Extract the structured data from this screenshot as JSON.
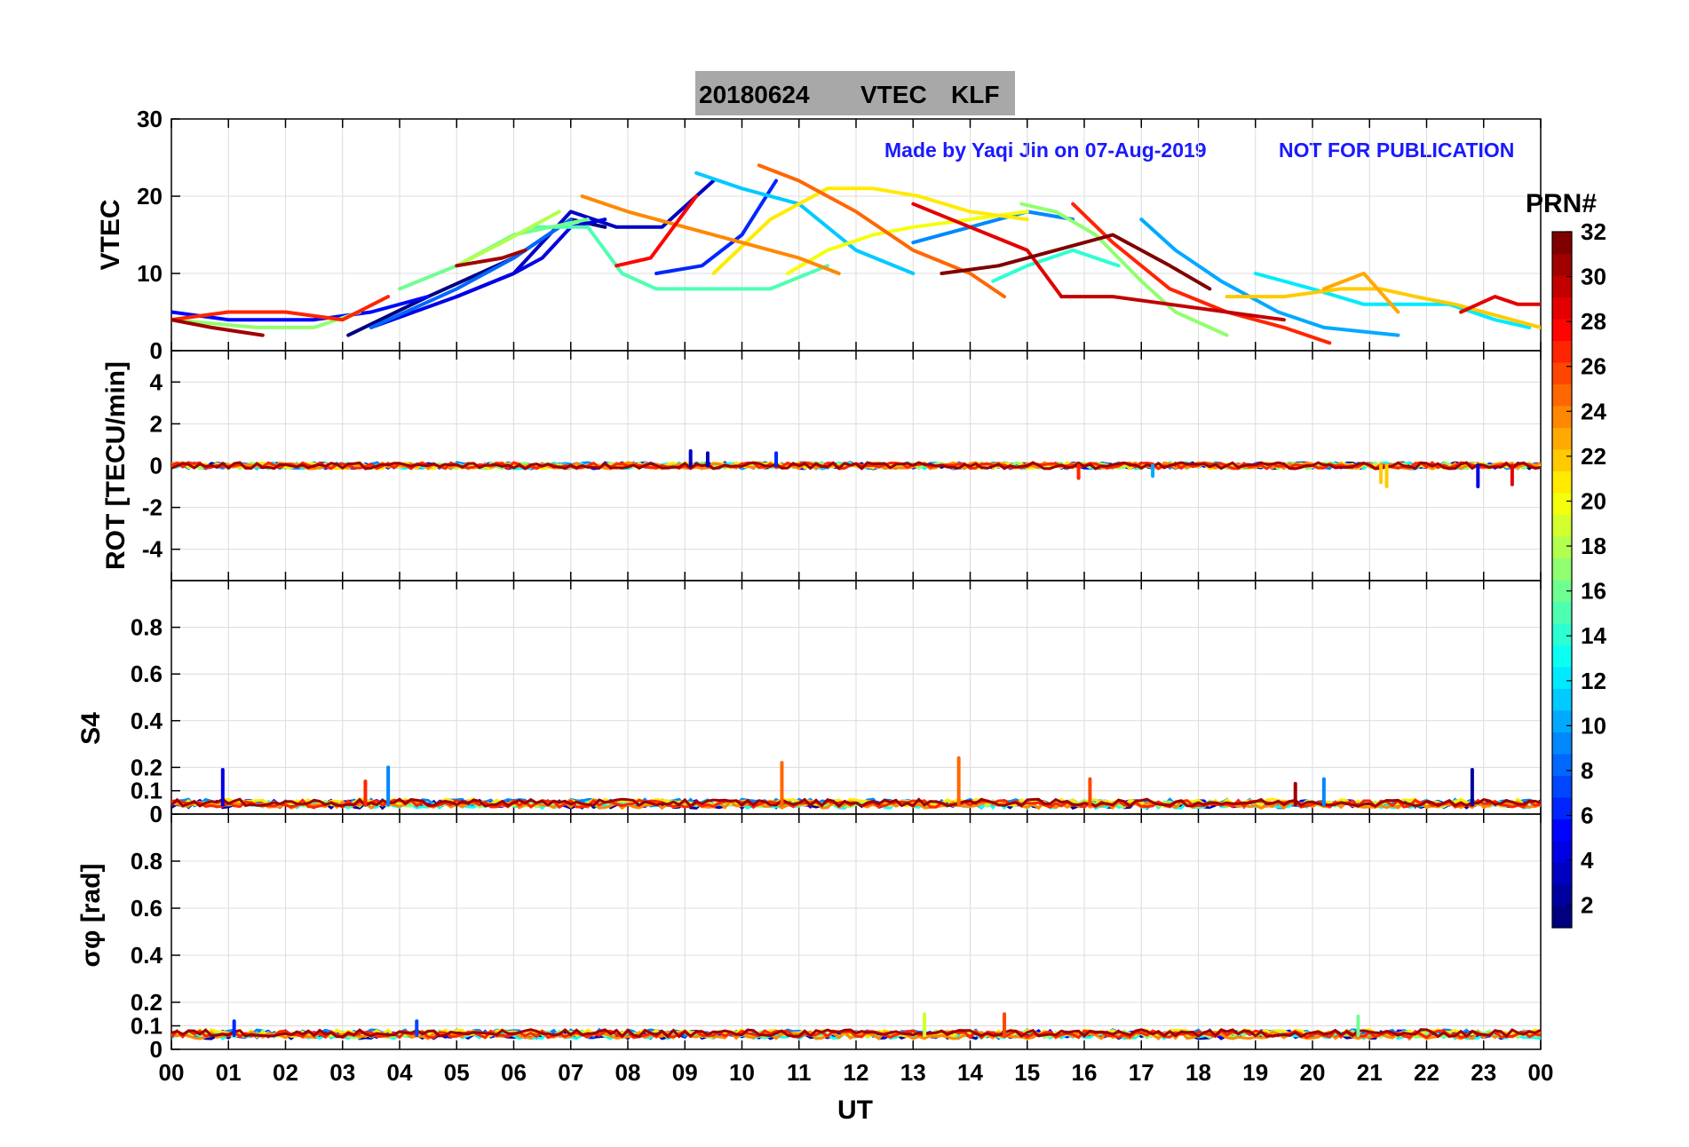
{
  "title": {
    "date": "20180624",
    "quantity": "VTEC",
    "station": "KLF"
  },
  "annotation": {
    "credit": "Made by Yaqi Jin on 07-Aug-2019",
    "notice": "NOT FOR PUBLICATION"
  },
  "colorbar": {
    "label": "PRN#",
    "range": [
      1,
      32
    ],
    "tick_labels": [
      "2",
      "4",
      "6",
      "8",
      "10",
      "12",
      "14",
      "16",
      "18",
      "20",
      "22",
      "24",
      "26",
      "28",
      "30",
      "32"
    ],
    "colormap": "jet"
  },
  "xaxis": {
    "label": "UT",
    "range": [
      0,
      24
    ],
    "tick_labels": [
      "00",
      "01",
      "02",
      "03",
      "04",
      "05",
      "06",
      "07",
      "08",
      "09",
      "10",
      "11",
      "12",
      "13",
      "14",
      "15",
      "16",
      "17",
      "18",
      "19",
      "20",
      "21",
      "22",
      "23",
      "00"
    ]
  },
  "chart_data": [
    {
      "type": "line",
      "panel": "vtec",
      "ylabel": "VTEC",
      "ylim": [
        0,
        30
      ],
      "ytick_labels": [
        "0",
        "10",
        "20",
        "30"
      ],
      "series": [
        {
          "prn": 1,
          "x": [
            3.1,
            4.5,
            6.0,
            7.0,
            7.6
          ],
          "y": [
            2,
            7,
            12,
            17,
            16
          ]
        },
        {
          "prn": 3,
          "x": [
            5.0,
            6.0,
            7.0,
            7.8,
            8.6,
            9.5
          ],
          "y": [
            7,
            10,
            18,
            16,
            16,
            22
          ]
        },
        {
          "prn": 4,
          "x": [
            3.5,
            5.0,
            6.0,
            6.5,
            7.0,
            7.6
          ],
          "y": [
            3,
            7,
            10,
            12,
            16,
            17
          ]
        },
        {
          "prn": 5,
          "x": [
            0,
            1.0,
            2.5,
            3.5,
            4.5
          ],
          "y": [
            5,
            4,
            4,
            5,
            7
          ]
        },
        {
          "prn": 6,
          "x": [
            8.5,
            9.3,
            10.0,
            10.6
          ],
          "y": [
            10,
            11,
            15,
            22
          ]
        },
        {
          "prn": 8,
          "x": [
            3.5,
            5.0,
            6.0,
            7.0
          ],
          "y": [
            3,
            8,
            12,
            17
          ]
        },
        {
          "prn": 9,
          "x": [
            13.0,
            14.0,
            15.0,
            15.8
          ],
          "y": [
            14,
            16,
            18,
            17
          ]
        },
        {
          "prn": 10,
          "x": [
            17.0,
            17.6,
            18.4,
            19.4,
            20.2,
            21.5
          ],
          "y": [
            17,
            13,
            9,
            5,
            3,
            2
          ]
        },
        {
          "prn": 11,
          "x": [
            9.2,
            10.0,
            11.0,
            12.0,
            13.0
          ],
          "y": [
            23,
            21,
            19,
            13,
            10
          ]
        },
        {
          "prn": 12,
          "x": [
            19.0,
            20.0,
            20.9,
            21.5,
            22.4,
            23.2,
            23.8
          ],
          "y": [
            10,
            8,
            6,
            6,
            6,
            4,
            3
          ]
        },
        {
          "prn": 14,
          "x": [
            14.4,
            15.0,
            15.8,
            16.6
          ],
          "y": [
            9,
            11,
            13,
            11
          ]
        },
        {
          "prn": 15,
          "x": [
            6.3,
            7.3,
            7.9,
            8.5,
            9.5,
            10.5,
            11.5
          ],
          "y": [
            16,
            16,
            10,
            8,
            8,
            8,
            11
          ]
        },
        {
          "prn": 16,
          "x": [
            4.0,
            5.0,
            6.0,
            7.3
          ],
          "y": [
            8,
            11,
            15,
            17
          ]
        },
        {
          "prn": 17,
          "x": [
            0,
            1.5,
            2.5,
            3.3
          ],
          "y": [
            4,
            3,
            3,
            5
          ]
        },
        {
          "prn": 17,
          "x": [
            14.9,
            15.5,
            16.2,
            17.0,
            17.6,
            18.5
          ],
          "y": [
            19,
            18,
            15,
            9,
            5,
            2
          ]
        },
        {
          "prn": 18,
          "x": [
            5.0,
            5.8,
            6.8
          ],
          "y": [
            11,
            14,
            18
          ]
        },
        {
          "prn": 20,
          "x": [
            10.8,
            11.5,
            12.3,
            13.0,
            14.0,
            15.0
          ],
          "y": [
            10,
            13,
            15,
            16,
            17,
            18
          ]
        },
        {
          "prn": 21,
          "x": [
            9.5,
            10.5,
            11.5,
            12.3,
            13.1,
            14.0,
            15.0
          ],
          "y": [
            10,
            17,
            21,
            21,
            20,
            18,
            17
          ]
        },
        {
          "prn": 22,
          "x": [
            18.5,
            19.5,
            20.5,
            21.2,
            21.8,
            22.5,
            23.5,
            24.0
          ],
          "y": [
            7,
            7,
            8,
            8,
            7,
            6,
            4,
            3
          ]
        },
        {
          "prn": 23,
          "x": [
            20.2,
            20.9,
            21.5
          ],
          "y": [
            8,
            10,
            5
          ]
        },
        {
          "prn": 24,
          "x": [
            7.2,
            8.0,
            9.0,
            10.0,
            11.0,
            11.7
          ],
          "y": [
            20,
            18,
            16,
            14,
            12,
            10
          ]
        },
        {
          "prn": 25,
          "x": [
            10.3,
            11.0,
            12.0,
            13.0,
            14.0,
            14.6
          ],
          "y": [
            24,
            22,
            18,
            13,
            10,
            7
          ]
        },
        {
          "prn": 27,
          "x": [
            0,
            1.0,
            2.0,
            3.0,
            3.8
          ],
          "y": [
            4,
            5,
            5,
            4,
            7
          ]
        },
        {
          "prn": 27,
          "x": [
            15.8,
            16.5,
            17.5,
            18.5,
            19.5,
            20.3
          ],
          "y": [
            19,
            14,
            8,
            5,
            3,
            1
          ]
        },
        {
          "prn": 28,
          "x": [
            7.8,
            8.4,
            9.2
          ],
          "y": [
            11,
            12,
            20
          ]
        },
        {
          "prn": 29,
          "x": [
            13.0,
            14.0,
            15.0,
            15.6
          ],
          "y": [
            19,
            16,
            13,
            7
          ]
        },
        {
          "prn": 29,
          "x": [
            22.6,
            23.2,
            23.6,
            24.0
          ],
          "y": [
            5,
            7,
            6,
            6
          ]
        },
        {
          "prn": 30,
          "x": [
            15.6,
            16.5,
            17.5,
            18.5,
            19.5
          ],
          "y": [
            7,
            7,
            6,
            5,
            4
          ]
        },
        {
          "prn": 31,
          "x": [
            0,
            0.7,
            1.6
          ],
          "y": [
            4,
            3,
            2
          ]
        },
        {
          "prn": 31,
          "x": [
            5.0,
            5.8,
            6.2
          ],
          "y": [
            11,
            12,
            13
          ]
        },
        {
          "prn": 32,
          "x": [
            13.5,
            14.5,
            15.5,
            16.5,
            17.5,
            18.2
          ],
          "y": [
            10,
            11,
            13,
            15,
            11,
            8
          ]
        }
      ]
    },
    {
      "type": "line",
      "panel": "rot",
      "ylabel": "ROT [TECU/min]",
      "ylim": [
        -5.5,
        5.5
      ],
      "ytick_labels": [
        "-4",
        "-2",
        "0",
        "2",
        "4"
      ],
      "baseline": 0,
      "spikes": [
        {
          "prn": 3,
          "x": [
            9.1,
            9.4
          ],
          "y": [
            0.7,
            0.6
          ]
        },
        {
          "prn": 6,
          "x": [
            10.6
          ],
          "y": [
            0.6
          ]
        },
        {
          "prn": 27,
          "x": [
            15.9
          ],
          "y": [
            -0.6
          ]
        },
        {
          "prn": 10,
          "x": [
            17.2
          ],
          "y": [
            -0.5
          ]
        },
        {
          "prn": 22,
          "x": [
            21.2,
            21.3
          ],
          "y": [
            -0.8,
            -1.0
          ]
        },
        {
          "prn": 4,
          "x": [
            22.9
          ],
          "y": [
            -1.0
          ]
        },
        {
          "prn": 29,
          "x": [
            23.5
          ],
          "y": [
            -0.9
          ]
        }
      ]
    },
    {
      "type": "line",
      "panel": "s4",
      "ylabel": "S4",
      "ylim": [
        0,
        1.0
      ],
      "ytick_labels": [
        "0",
        "0.1",
        "0.2",
        "0.4",
        "0.6",
        "0.8"
      ],
      "baseline": 0.04,
      "spikes": [
        {
          "prn": 4,
          "x": [
            0.9
          ],
          "y": [
            0.19
          ]
        },
        {
          "prn": 27,
          "x": [
            3.4
          ],
          "y": [
            0.14
          ]
        },
        {
          "prn": 9,
          "x": [
            3.8
          ],
          "y": [
            0.2
          ]
        },
        {
          "prn": 25,
          "x": [
            10.7
          ],
          "y": [
            0.22
          ]
        },
        {
          "prn": 25,
          "x": [
            13.8
          ],
          "y": [
            0.24
          ]
        },
        {
          "prn": 26,
          "x": [
            16.1
          ],
          "y": [
            0.15
          ]
        },
        {
          "prn": 31,
          "x": [
            19.7
          ],
          "y": [
            0.13
          ]
        },
        {
          "prn": 9,
          "x": [
            20.2
          ],
          "y": [
            0.15
          ]
        },
        {
          "prn": 2,
          "x": [
            22.8
          ],
          "y": [
            0.19
          ]
        }
      ]
    },
    {
      "type": "line",
      "panel": "sigma_phi",
      "ylabel": "σφ [rad]",
      "ylim": [
        0,
        1.0
      ],
      "ytick_labels": [
        "0",
        "0.1",
        "0.2",
        "0.4",
        "0.6",
        "0.8"
      ],
      "baseline": 0.06,
      "spikes": [
        {
          "prn": 6,
          "x": [
            1.1
          ],
          "y": [
            0.12
          ]
        },
        {
          "prn": 7,
          "x": [
            4.3
          ],
          "y": [
            0.12
          ]
        },
        {
          "prn": 19,
          "x": [
            13.2
          ],
          "y": [
            0.15
          ]
        },
        {
          "prn": 26,
          "x": [
            14.6
          ],
          "y": [
            0.15
          ]
        },
        {
          "prn": 16,
          "x": [
            20.8
          ],
          "y": [
            0.14
          ]
        }
      ]
    }
  ]
}
